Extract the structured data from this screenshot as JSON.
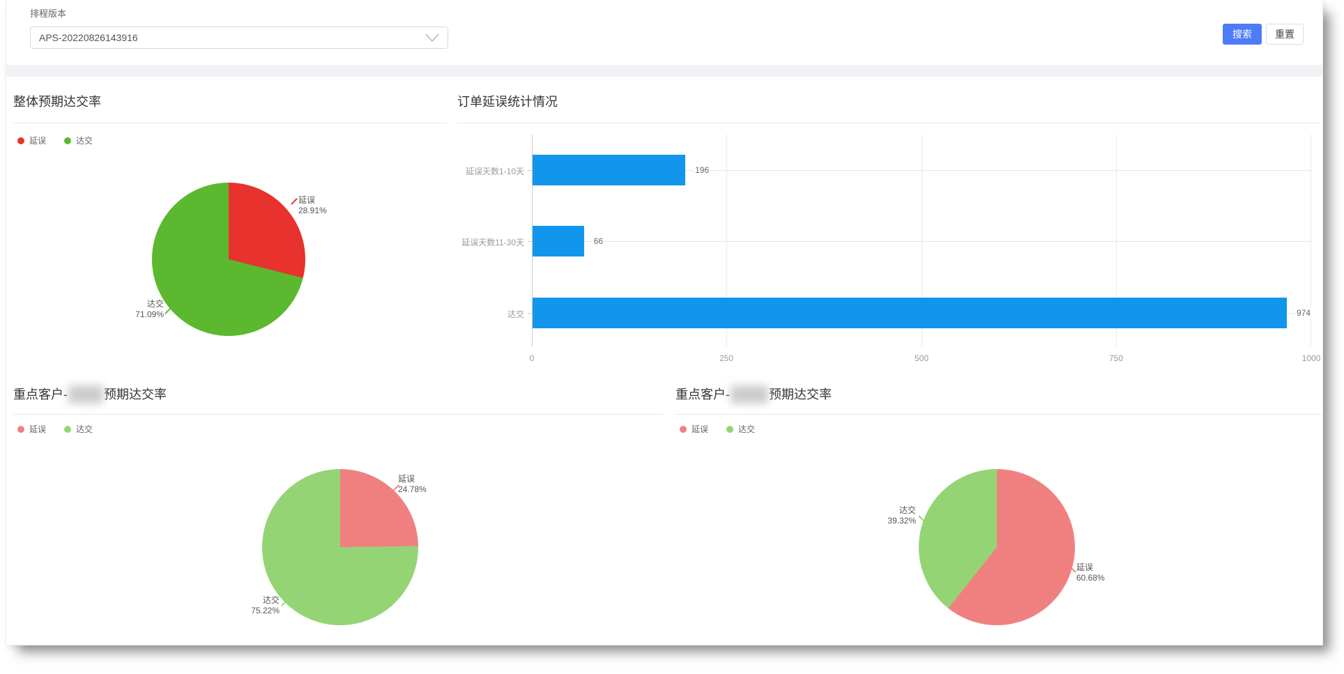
{
  "filter": {
    "label": "排程版本",
    "select_value": "APS-20220826143916",
    "search": "搜索",
    "reset": "重置"
  },
  "colors": {
    "accent_blue": "#4e7cf8",
    "bar_blue": "#1296ec",
    "delay_red": "#e8322d",
    "deliver_green": "#5cb82e",
    "soft_red": "#f08080",
    "soft_green": "#95d475"
  },
  "chart_data": [
    {
      "id": "overall-delivery-pie",
      "type": "pie",
      "title": "整体预期达交率",
      "legend_position": "top-left",
      "slices": [
        {
          "name": "延误",
          "value": 28.91,
          "label": "28.91%",
          "color": "#e8322d"
        },
        {
          "name": "达交",
          "value": 71.09,
          "label": "71.09%",
          "color": "#5cb82e"
        }
      ]
    },
    {
      "id": "order-delay-bar",
      "type": "bar",
      "title": "订单延误统计情况",
      "orientation": "horizontal",
      "categories": [
        "延误天数1-10天",
        "延误天数11-30天",
        "达交"
      ],
      "values": [
        196,
        66,
        974
      ],
      "xlim": [
        0,
        1000
      ],
      "x_ticks": [
        "0",
        "250",
        "500",
        "750",
        "1000"
      ],
      "bar_color": "#1296ec",
      "grid": true
    },
    {
      "id": "key-customer-1-pie",
      "type": "pie",
      "title_prefix": "重点客户-",
      "title_redacted": true,
      "title_suffix": "预期达交率",
      "slices": [
        {
          "name": "延误",
          "value": 24.78,
          "label": "24.78%",
          "color": "#f08080"
        },
        {
          "name": "达交",
          "value": 75.22,
          "label": "75.22%",
          "color": "#95d475"
        }
      ]
    },
    {
      "id": "key-customer-2-pie",
      "type": "pie",
      "title_prefix": "重点客户-",
      "title_redacted": true,
      "title_suffix": "预期达交率",
      "slices": [
        {
          "name": "延误",
          "value": 60.68,
          "label": "60.68%",
          "color": "#f08080"
        },
        {
          "name": "达交",
          "value": 39.32,
          "label": "39.32%",
          "color": "#95d475"
        }
      ]
    }
  ]
}
